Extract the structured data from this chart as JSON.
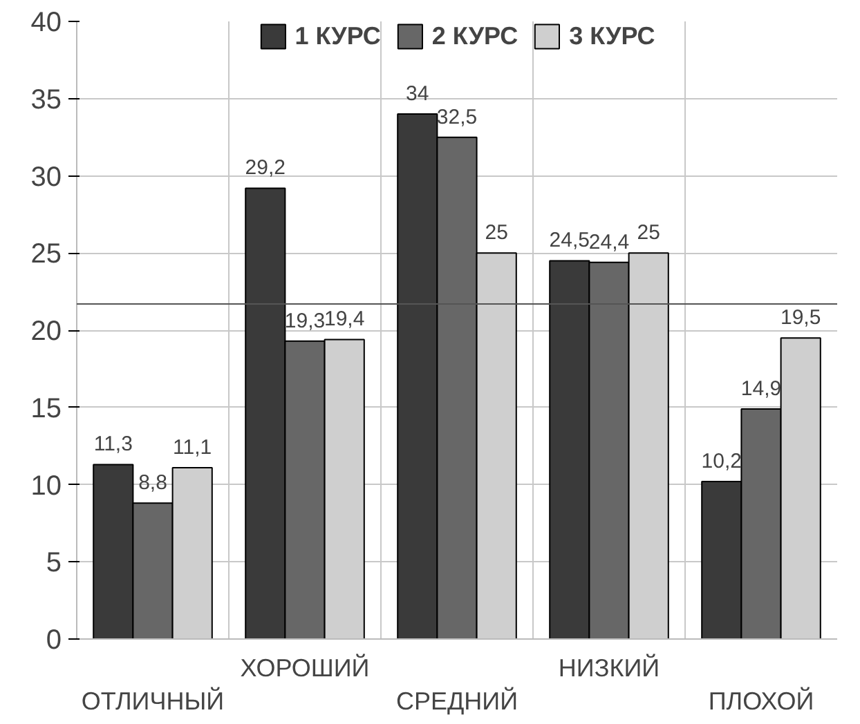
{
  "chart_data": {
    "type": "bar",
    "categories": [
      "ОТЛИЧНЫЙ",
      "ХОРОШИЙ",
      "СРЕДНИЙ",
      "НИЗКИЙ",
      "ПЛОХОЙ"
    ],
    "series": [
      {
        "name": "1 КУРС",
        "color": "#3a3a3a",
        "values": [
          11.3,
          29.2,
          34,
          24.5,
          10.2
        ],
        "value_labels": [
          "11,3",
          "29,2",
          "34",
          "24,5",
          "10,2"
        ]
      },
      {
        "name": "2 КУРС",
        "color": "#676767",
        "values": [
          8.8,
          19.3,
          32.5,
          24.4,
          14.9
        ],
        "value_labels": [
          "8,8",
          "19,3",
          "32,5",
          "24,4",
          "14,9"
        ]
      },
      {
        "name": "3 КУРС",
        "color": "#cfcfcf",
        "values": [
          11.1,
          19.4,
          25,
          25,
          19.5
        ],
        "value_labels": [
          "11,1",
          "19,4",
          "25",
          "25",
          "19,5"
        ]
      }
    ],
    "ylim": [
      0,
      40
    ],
    "yticks": [
      0,
      5,
      10,
      15,
      20,
      25,
      30,
      35,
      40
    ],
    "ref_lines": [
      {
        "axis": "y",
        "value": 21.7,
        "label": null,
        "color": "#555555"
      }
    ],
    "grid": true,
    "legend": "top"
  }
}
